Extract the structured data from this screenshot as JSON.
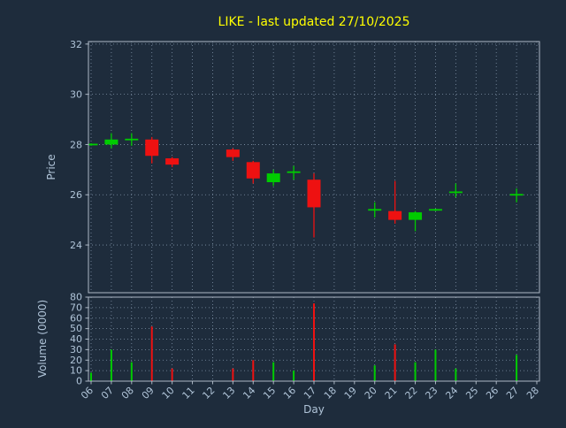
{
  "title": "LIKE - last updated 27/10/2025",
  "colors": {
    "background": "#1e2c3c",
    "grid": "#8093a8",
    "frame": "#aeb9c6",
    "text": "#b0c4d8",
    "title": "#ffff00",
    "up": "#00cc00",
    "down": "#ee1111"
  },
  "chart_data": {
    "type": "candlestick",
    "xlabel": "Day",
    "x_ticks": [
      "06",
      "07",
      "08",
      "09",
      "10",
      "11",
      "12",
      "13",
      "14",
      "15",
      "16",
      "17",
      "18",
      "19",
      "20",
      "21",
      "22",
      "23",
      "24",
      "25",
      "26",
      "27",
      "28"
    ],
    "price_axis": {
      "label": "Price",
      "ticks": [
        24,
        26,
        28,
        30,
        32
      ],
      "ylim": [
        22.1,
        32.1
      ]
    },
    "volume_axis": {
      "label": "Volume (0000)",
      "ticks": [
        0,
        10,
        20,
        30,
        40,
        50,
        60,
        70,
        80
      ],
      "ylim": [
        0,
        80
      ]
    },
    "candles": [
      {
        "day": "06",
        "open": 28.0,
        "close": 28.0,
        "high": 28.05,
        "low": 27.95,
        "volume": 8
      },
      {
        "day": "07",
        "open": 28.0,
        "close": 28.2,
        "high": 28.45,
        "low": 27.85,
        "volume": 30
      },
      {
        "day": "08",
        "open": 28.2,
        "close": 28.2,
        "high": 28.45,
        "low": 27.95,
        "volume": 18
      },
      {
        "day": "09",
        "open": 28.2,
        "close": 27.55,
        "high": 28.3,
        "low": 27.25,
        "volume": 52
      },
      {
        "day": "10",
        "open": 27.45,
        "close": 27.2,
        "high": 27.5,
        "low": 27.1,
        "volume": 12
      },
      {
        "day": "13",
        "open": 27.8,
        "close": 27.5,
        "high": 27.85,
        "low": 27.35,
        "volume": 12
      },
      {
        "day": "14",
        "open": 27.3,
        "close": 26.65,
        "high": 27.35,
        "low": 26.45,
        "volume": 20
      },
      {
        "day": "15",
        "open": 26.5,
        "close": 26.85,
        "high": 27.0,
        "low": 26.35,
        "volume": 18
      },
      {
        "day": "16",
        "open": 26.9,
        "close": 26.9,
        "high": 27.15,
        "low": 26.6,
        "volume": 10
      },
      {
        "day": "17",
        "open": 26.6,
        "close": 25.5,
        "high": 26.85,
        "low": 24.3,
        "volume": 74
      },
      {
        "day": "20",
        "open": 25.4,
        "close": 25.4,
        "high": 25.7,
        "low": 25.1,
        "volume": 15
      },
      {
        "day": "21",
        "open": 25.35,
        "close": 25.0,
        "high": 26.55,
        "low": 24.85,
        "volume": 35
      },
      {
        "day": "22",
        "open": 25.0,
        "close": 25.3,
        "high": 25.35,
        "low": 24.55,
        "volume": 18
      },
      {
        "day": "23",
        "open": 25.4,
        "close": 25.4,
        "high": 25.45,
        "low": 25.35,
        "volume": 30
      },
      {
        "day": "24",
        "open": 26.1,
        "close": 26.1,
        "high": 26.45,
        "low": 25.9,
        "volume": 12
      },
      {
        "day": "27",
        "open": 26.0,
        "close": 26.0,
        "high": 26.25,
        "low": 25.7,
        "volume": 25
      }
    ]
  }
}
